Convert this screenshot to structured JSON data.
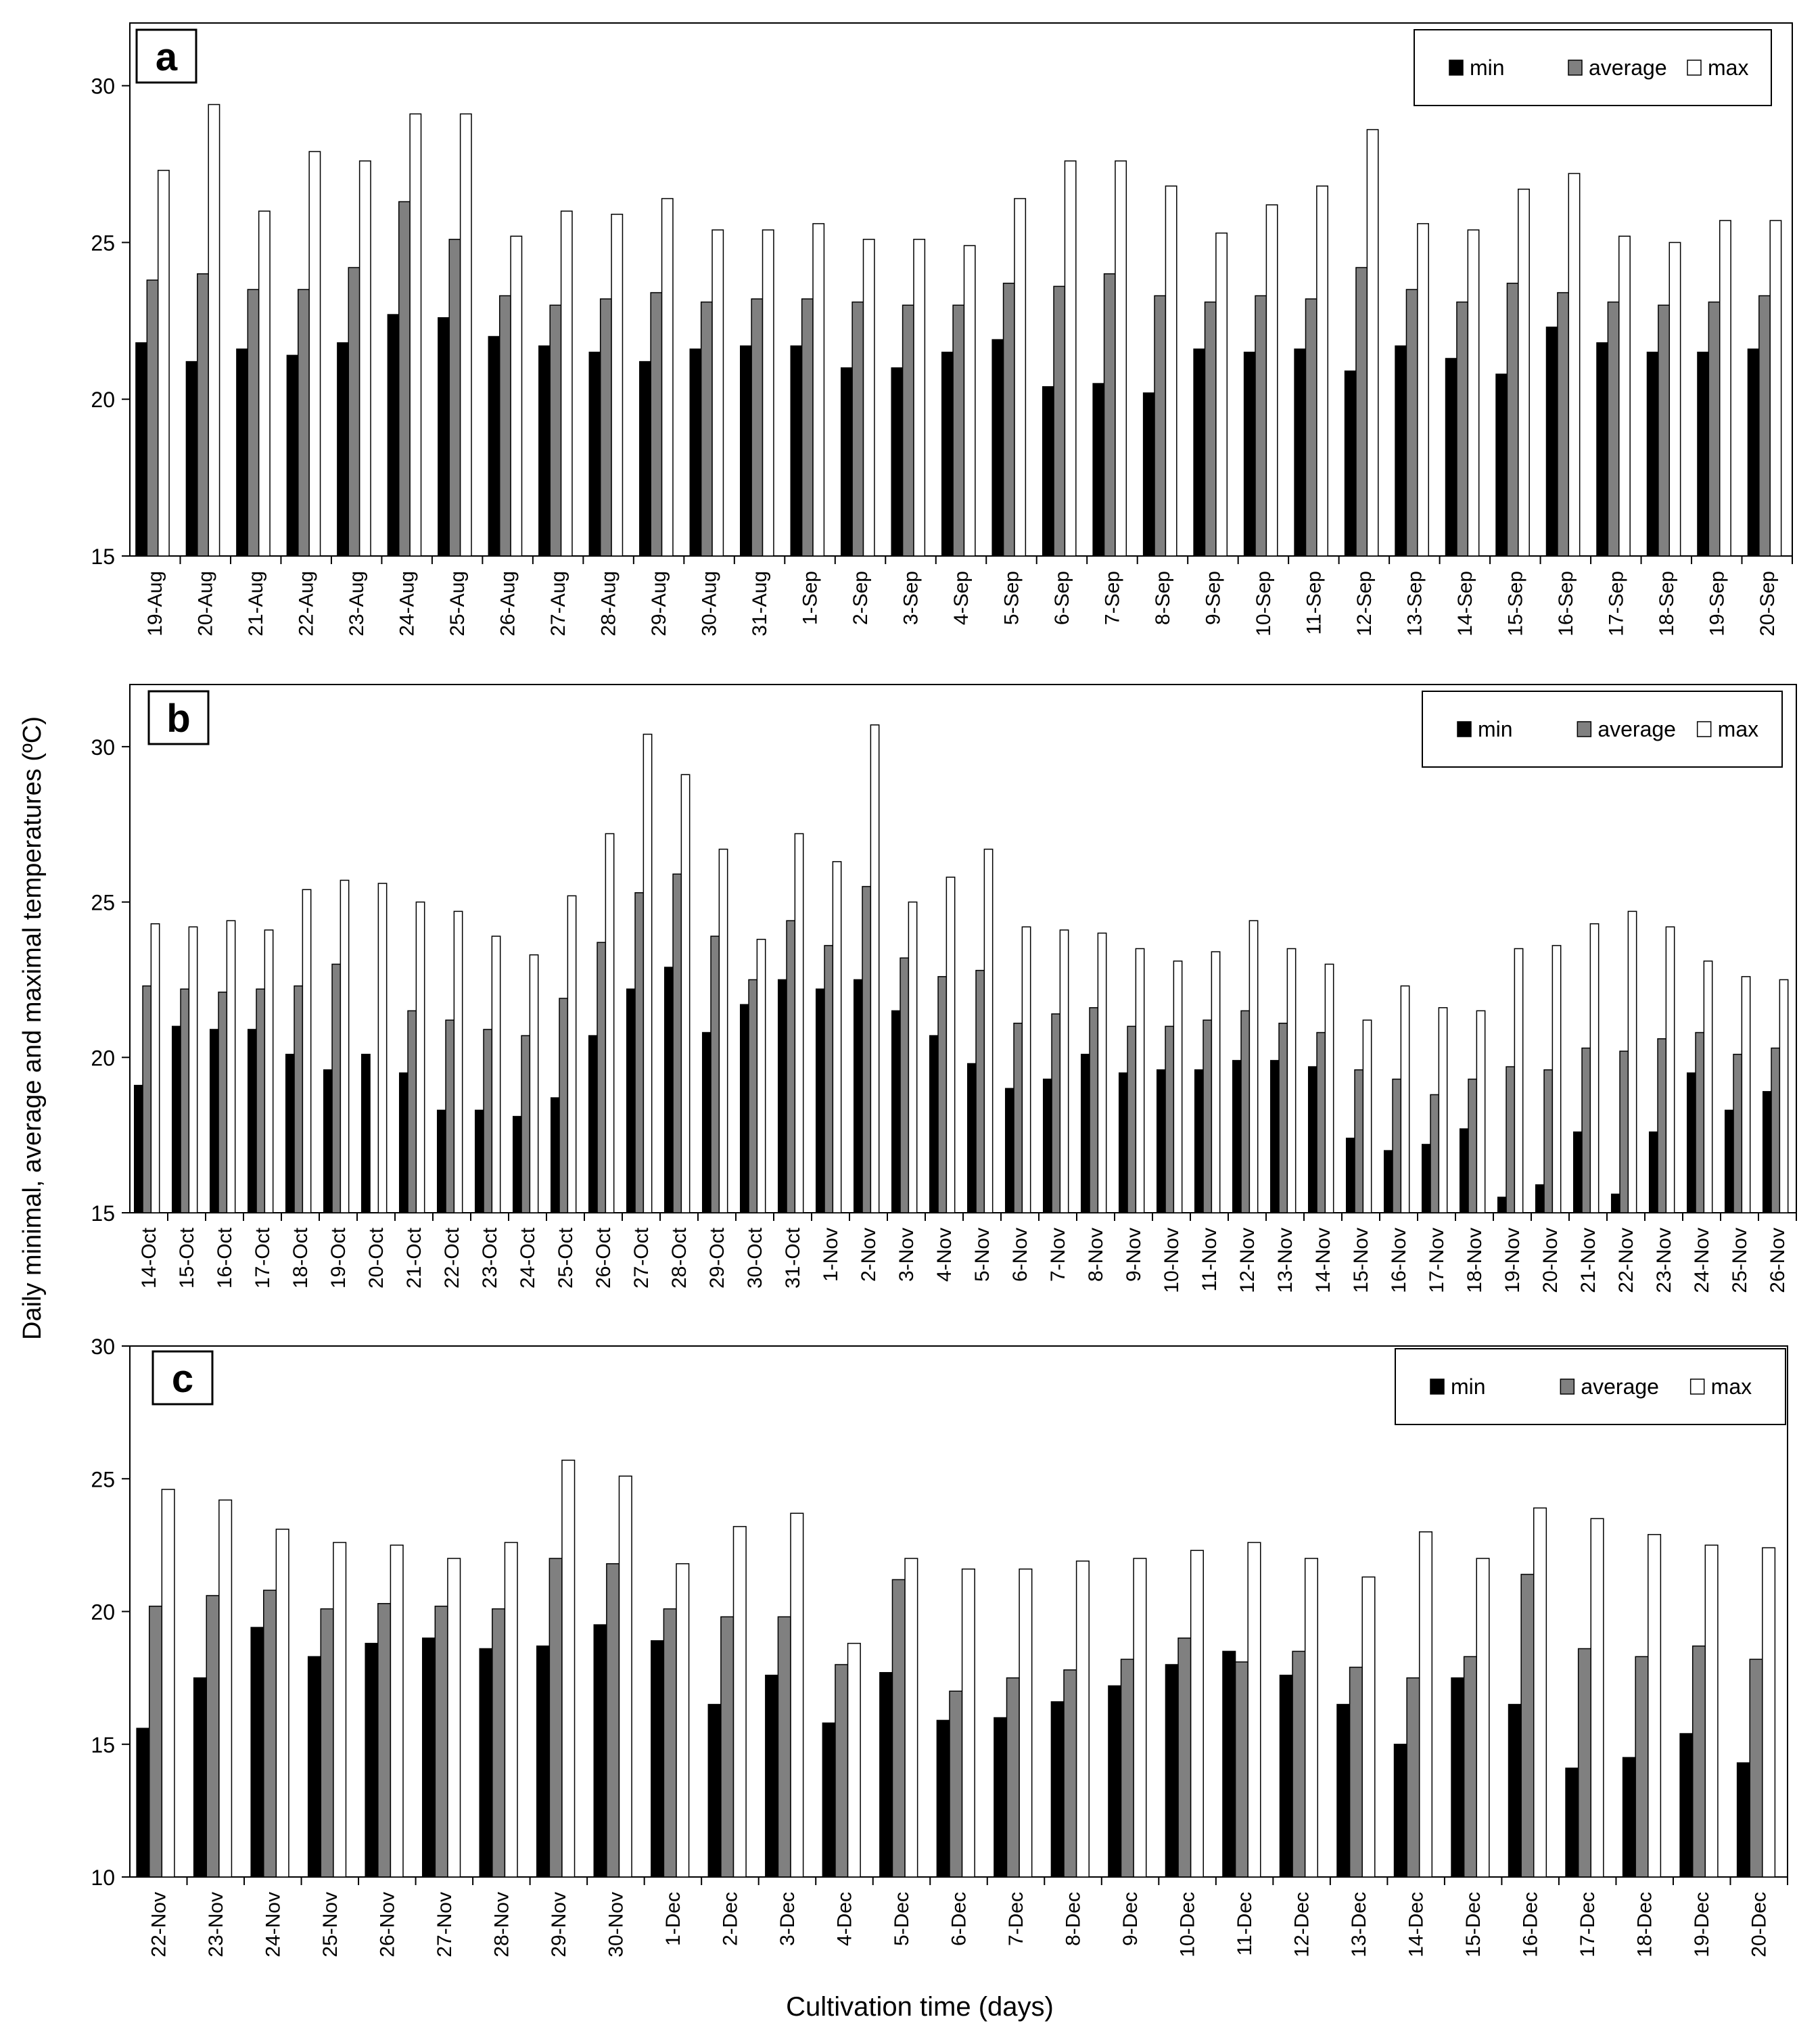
{
  "figure": {
    "y_axis_label": "Daily minimal, average and maximal temperatures (ºC)",
    "x_axis_label": "Cultivation time (days)"
  },
  "colors": {
    "min": "#000000",
    "average": "#808080",
    "max": "#ffffff",
    "outline": "#000000"
  },
  "chart_data": [
    {
      "type": "bar",
      "panel": "a",
      "legend": [
        "min",
        "average",
        "max"
      ],
      "legend_position": "top-right",
      "grid": false,
      "ylim": [
        15,
        32
      ],
      "yticks": [
        15,
        20,
        25,
        30
      ],
      "categories": [
        "19-Aug",
        "20-Aug",
        "21-Aug",
        "22-Aug",
        "23-Aug",
        "24-Aug",
        "25-Aug",
        "26-Aug",
        "27-Aug",
        "28-Aug",
        "29-Aug",
        "30-Aug",
        "31-Aug",
        "1-Sep",
        "2-Sep",
        "3-Sep",
        "4-Sep",
        "5-Sep",
        "6-Sep",
        "7-Sep",
        "8-Sep",
        "9-Sep",
        "10-Sep",
        "11-Sep",
        "12-Sep",
        "13-Sep",
        "14-Sep",
        "15-Sep",
        "16-Sep",
        "17-Sep",
        "18-Sep",
        "19-Sep",
        "20-Sep"
      ],
      "series": [
        {
          "name": "min",
          "values": [
            21.8,
            21.2,
            21.6,
            21.4,
            21.8,
            22.7,
            22.6,
            22.0,
            21.7,
            21.5,
            21.2,
            21.6,
            21.7,
            21.7,
            21.0,
            21.0,
            21.5,
            21.9,
            20.4,
            20.5,
            20.2,
            21.6,
            21.5,
            21.6,
            20.9,
            21.7,
            21.3,
            20.8,
            22.3,
            21.8,
            21.5,
            21.5,
            21.6
          ]
        },
        {
          "name": "average",
          "values": [
            23.8,
            24.0,
            23.5,
            23.5,
            24.2,
            26.3,
            25.1,
            23.3,
            23.0,
            23.2,
            23.4,
            23.1,
            23.2,
            23.2,
            23.1,
            23.0,
            23.0,
            23.7,
            23.6,
            24.0,
            23.3,
            23.1,
            23.3,
            23.2,
            24.2,
            23.5,
            23.1,
            23.7,
            23.4,
            23.1,
            23.0,
            23.1,
            23.3
          ]
        },
        {
          "name": "max",
          "values": [
            27.3,
            29.4,
            26.0,
            27.9,
            27.6,
            29.1,
            29.1,
            25.2,
            26.0,
            25.9,
            26.4,
            25.4,
            25.4,
            25.6,
            25.1,
            25.1,
            24.9,
            26.4,
            27.6,
            27.6,
            26.8,
            25.3,
            26.2,
            26.8,
            28.6,
            25.6,
            25.4,
            26.7,
            27.2,
            25.2,
            25.0,
            25.7,
            25.7
          ]
        }
      ]
    },
    {
      "type": "bar",
      "panel": "b",
      "legend": [
        "min",
        "average",
        "max"
      ],
      "legend_position": "top-right",
      "grid": false,
      "ylim": [
        15,
        32
      ],
      "yticks": [
        15,
        20,
        25,
        30
      ],
      "categories": [
        "14-Oct",
        "15-Oct",
        "16-Oct",
        "17-Oct",
        "18-Oct",
        "19-Oct",
        "20-Oct",
        "21-Oct",
        "22-Oct",
        "23-Oct",
        "24-Oct",
        "25-Oct",
        "26-Oct",
        "27-Oct",
        "28-Oct",
        "29-Oct",
        "30-Oct",
        "31-Oct",
        "1-Nov",
        "2-Nov",
        "3-Nov",
        "4-Nov",
        "5-Nov",
        "6-Nov",
        "7-Nov",
        "8-Nov",
        "9-Nov",
        "10-Nov",
        "11-Nov",
        "12-Nov",
        "13-Nov",
        "14-Nov",
        "15-Nov",
        "16-Nov",
        "17-Nov",
        "18-Nov",
        "19-Nov",
        "20-Nov",
        "21-Nov",
        "22-Nov",
        "23-Nov",
        "24-Nov",
        "25-Nov",
        "26-Nov"
      ],
      "series": [
        {
          "name": "min",
          "values": [
            19.1,
            21.0,
            20.9,
            20.9,
            20.1,
            19.6,
            20.1,
            19.5,
            18.3,
            18.3,
            18.1,
            18.7,
            20.7,
            22.2,
            22.9,
            20.8,
            21.7,
            22.5,
            22.2,
            22.5,
            21.5,
            20.7,
            19.8,
            19.0,
            19.3,
            20.1,
            19.5,
            19.6,
            19.6,
            19.9,
            19.9,
            19.7,
            17.4,
            17.0,
            17.2,
            17.7,
            15.5,
            15.9,
            17.6,
            15.6,
            17.6,
            19.5,
            18.3,
            18.9
          ]
        },
        {
          "name": "average",
          "values": [
            22.3,
            22.2,
            22.1,
            22.2,
            22.3,
            23.0,
            15.0,
            21.5,
            21.2,
            20.9,
            20.7,
            21.9,
            23.7,
            25.3,
            25.9,
            23.9,
            22.5,
            24.4,
            23.6,
            25.5,
            23.2,
            22.6,
            22.8,
            21.1,
            21.4,
            21.6,
            21.0,
            21.0,
            21.2,
            21.5,
            21.1,
            20.8,
            19.6,
            19.3,
            18.8,
            19.3,
            19.7,
            19.6,
            20.3,
            20.2,
            20.6,
            20.8,
            20.1,
            20.3
          ]
        },
        {
          "name": "max",
          "values": [
            24.3,
            24.2,
            24.4,
            24.1,
            25.4,
            25.7,
            25.6,
            25.0,
            24.7,
            23.9,
            23.3,
            25.2,
            27.2,
            30.4,
            29.1,
            26.7,
            23.8,
            27.2,
            26.3,
            30.7,
            25.0,
            25.8,
            26.7,
            24.2,
            24.1,
            24.0,
            23.5,
            23.1,
            23.4,
            24.4,
            23.5,
            23.0,
            21.2,
            22.3,
            21.6,
            21.5,
            23.5,
            23.6,
            24.3,
            24.7,
            24.2,
            23.1,
            22.6,
            22.5
          ]
        }
      ]
    },
    {
      "type": "bar",
      "panel": "c",
      "legend": [
        "min",
        "average",
        "max"
      ],
      "legend_position": "top-right",
      "grid": false,
      "ylim": [
        10,
        30
      ],
      "yticks": [
        10,
        15,
        20,
        25,
        30
      ],
      "categories": [
        "22-Nov",
        "23-Nov",
        "24-Nov",
        "25-Nov",
        "26-Nov",
        "27-Nov",
        "28-Nov",
        "29-Nov",
        "30-Nov",
        "1-Dec",
        "2-Dec",
        "3-Dec",
        "4-Dec",
        "5-Dec",
        "6-Dec",
        "7-Dec",
        "8-Dec",
        "9-Dec",
        "10-Dec",
        "11-Dec",
        "12-Dec",
        "13-Dec",
        "14-Dec",
        "15-Dec",
        "16-Dec",
        "17-Dec",
        "18-Dec",
        "19-Dec",
        "20-Dec"
      ],
      "series": [
        {
          "name": "min",
          "values": [
            15.6,
            17.5,
            19.4,
            18.3,
            18.8,
            19.0,
            18.6,
            18.7,
            19.5,
            18.9,
            16.5,
            17.6,
            15.8,
            17.7,
            15.9,
            16.0,
            16.6,
            17.2,
            18.0,
            18.5,
            17.6,
            16.5,
            15.0,
            17.5,
            16.5,
            14.1,
            14.5,
            15.4,
            14.3
          ]
        },
        {
          "name": "average",
          "values": [
            20.2,
            20.6,
            20.8,
            20.1,
            20.3,
            20.2,
            20.1,
            22.0,
            21.8,
            20.1,
            19.8,
            19.8,
            18.0,
            21.2,
            17.0,
            17.5,
            17.8,
            18.2,
            19.0,
            18.1,
            18.5,
            17.9,
            17.5,
            18.3,
            21.4,
            18.6,
            18.3,
            18.7,
            18.2
          ]
        },
        {
          "name": "max",
          "values": [
            24.6,
            24.2,
            23.1,
            22.6,
            22.5,
            22.0,
            22.6,
            25.7,
            25.1,
            21.8,
            23.2,
            23.7,
            18.8,
            22.0,
            21.6,
            21.6,
            21.9,
            22.0,
            22.3,
            22.6,
            22.0,
            21.3,
            23.0,
            22.0,
            23.9,
            23.5,
            22.9,
            22.5,
            22.4
          ]
        }
      ]
    }
  ]
}
